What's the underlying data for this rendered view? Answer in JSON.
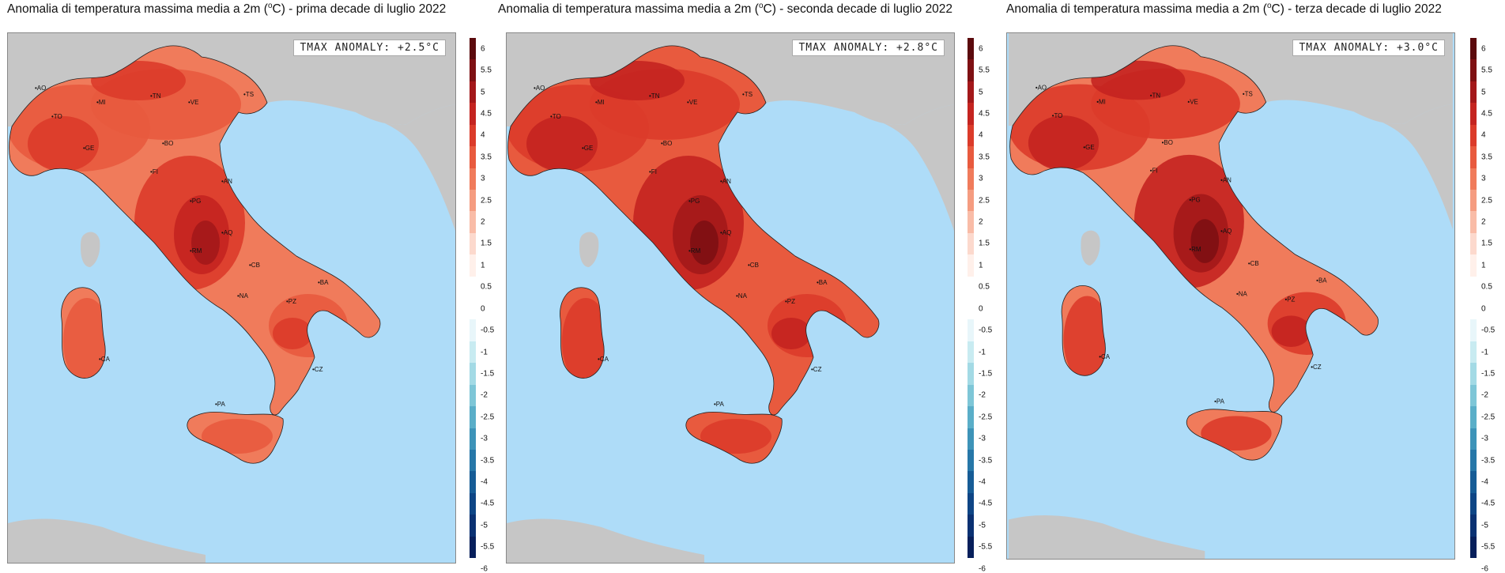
{
  "panels": [
    {
      "title_prefix": "Anomalia di temperatura massima media a 2m (",
      "title_deg": "o",
      "title_suffix": "C) - prima decade di luglio 2022",
      "anomaly_label": "TMAX ANOMALY: +2.5°C",
      "tint": "#e2402a"
    },
    {
      "title_prefix": "Anomalia di temperatura massima media a 2m (",
      "title_deg": "o",
      "title_suffix": "C) - seconda decade di luglio 2022",
      "anomaly_label": "TMAX ANOMALY: +2.8°C",
      "tint": "#c62a1f"
    },
    {
      "title_prefix": "Anomalia di temperatura massima media a 2m (",
      "title_deg": "o",
      "title_suffix": "C) - terza decade di luglio 2022",
      "anomaly_label": "TMAX ANOMALY: +3.0°C",
      "tint": "#d8352a"
    }
  ],
  "cities": [
    "TN",
    "TS",
    "MI",
    "VE",
    "AO",
    "TO",
    "GE",
    "BO",
    "FI",
    "AN",
    "PG",
    "AQ",
    "RM",
    "CB",
    "BA",
    "NA",
    "PZ",
    "CA",
    "PA",
    "CZ"
  ],
  "colorbar_ticks": [
    "6",
    "5.5",
    "5",
    "4.5",
    "4",
    "3.5",
    "3",
    "2.5",
    "2",
    "1.5",
    "1",
    "0.5",
    "0",
    "-0.5",
    "-1",
    "-1.5",
    "-2",
    "-2.5",
    "-3",
    "-3.5",
    "-4",
    "-4.5",
    "-5",
    "-5.5",
    "-6"
  ],
  "colorbar_colors": [
    "#5b0a0d",
    "#7e1013",
    "#a3181a",
    "#c42420",
    "#db3b2a",
    "#e85a3e",
    "#f07b5b",
    "#f59c80",
    "#f9bca7",
    "#fcd9cd",
    "#fff0ea",
    "#ffffff",
    "#ffffff",
    "#e8f6fa",
    "#c8ebf1",
    "#a3dae5",
    "#7ec6d7",
    "#5aaec8",
    "#3d93b8",
    "#2677a8",
    "#165c96",
    "#0e4585",
    "#0a3172",
    "#071f5b"
  ],
  "colors": {
    "sea": "#aedcf8",
    "land_foreign": "#c6c6c6",
    "background": "#ffffff"
  }
}
